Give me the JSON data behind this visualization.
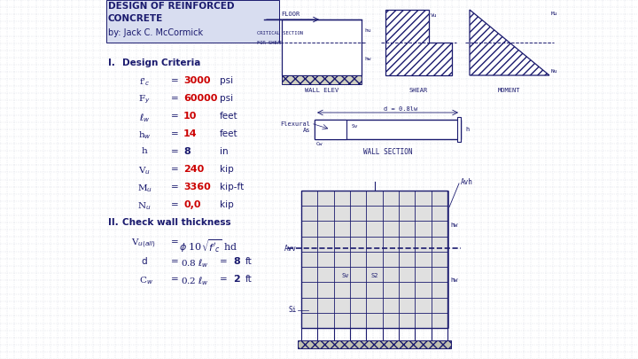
{
  "title1": "DESIGN OF REINFORCED",
  "title2": "CONCRETE",
  "author": "by: Jack C. McCormick",
  "bg_color": "#ffffff",
  "grid_color": "#a0a8c0",
  "text_color_dark": "#1a1a6e",
  "text_color_red": "#cc0000",
  "header_bg": "#d8ddf0",
  "row_labels": [
    "f'c",
    "Fy",
    "lw",
    "hw",
    "h",
    "Vu",
    "Mu",
    "Nu"
  ],
  "row_vals": [
    "3000",
    "60000",
    "10",
    "14",
    "8",
    "240",
    "3360",
    "0,0"
  ],
  "row_units": [
    "psi",
    "psi",
    "feet",
    "feet",
    "in",
    "kip",
    "kip-ft",
    "kip"
  ],
  "row_red": [
    true,
    true,
    true,
    true,
    false,
    true,
    true,
    true
  ]
}
